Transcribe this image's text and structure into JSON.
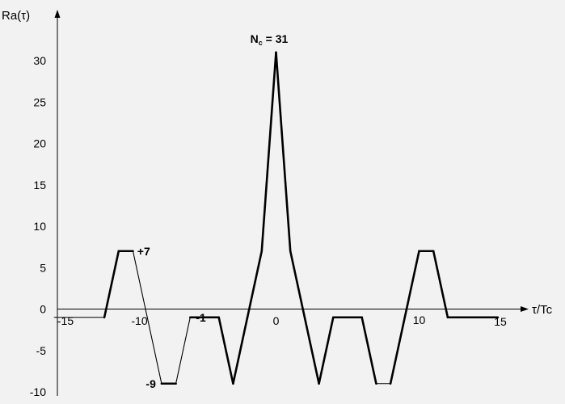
{
  "chart_data": {
    "type": "line",
    "title": "",
    "xlabel": "τ/Tc",
    "ylabel": "Ra(τ)",
    "xlim": [
      -15,
      15
    ],
    "ylim": [
      -10,
      30
    ],
    "x_ticks": [
      -15,
      -10,
      0,
      10,
      15
    ],
    "y_ticks": [
      -10,
      -5,
      0,
      5,
      10,
      15,
      20,
      25,
      30
    ],
    "grid": false,
    "colors": {
      "line": "#000000",
      "background": "#f2f2f2"
    },
    "series": [
      {
        "x": [
          -15.5,
          -12,
          -11,
          -10,
          -9,
          -8,
          -7,
          -6,
          -5,
          -4,
          -3,
          -2,
          -1,
          0,
          1,
          2,
          3,
          4,
          5,
          6,
          7,
          8,
          9,
          10,
          11,
          12,
          15.5
        ],
        "y": [
          -1,
          -1,
          7,
          7,
          -1,
          -9,
          -9,
          -1,
          -1,
          -1,
          -9,
          -1,
          7,
          31,
          7,
          -1,
          -9,
          -1,
          -1,
          -1,
          -9,
          -9,
          -1,
          7,
          7,
          -1,
          -1
        ],
        "thick_segments": [
          1,
          2,
          5,
          7,
          8,
          9,
          10,
          11,
          12,
          13,
          14,
          15,
          16,
          17,
          18,
          19,
          21,
          22,
          23,
          24,
          25
        ]
      }
    ],
    "annotations": [
      {
        "text": "+7",
        "x": -9.7,
        "y": 7
      },
      {
        "text": "-1",
        "x": -5.6,
        "y": -1
      },
      {
        "text": "-9",
        "x": -9.1,
        "y": -9
      },
      {
        "text_main": "N",
        "text_sub": "c",
        "text_after": " = 31",
        "x": -1.8,
        "y": 31
      }
    ]
  }
}
